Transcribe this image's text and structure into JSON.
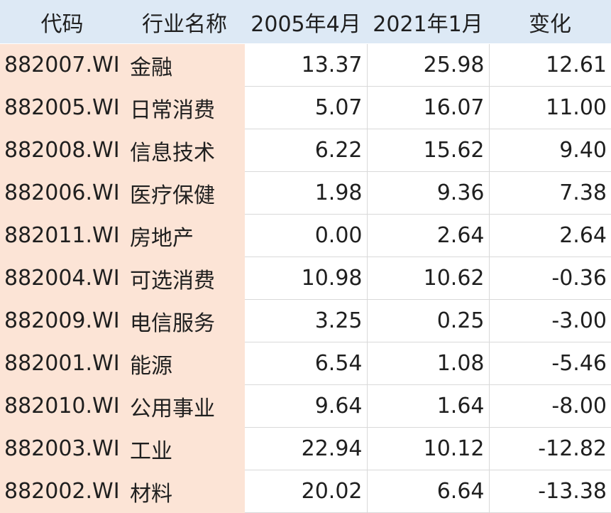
{
  "headers": {
    "code": "代码",
    "name": "行业名称",
    "v2005": "2005年4月",
    "v2021": "2021年1月",
    "change": "变化"
  },
  "rows": [
    {
      "code": "882007.WI",
      "name": "金融",
      "v2005": "13.37",
      "v2021": "25.98",
      "change": "12.61"
    },
    {
      "code": "882005.WI",
      "name": "日常消费",
      "v2005": "5.07",
      "v2021": "16.07",
      "change": "11.00"
    },
    {
      "code": "882008.WI",
      "name": "信息技术",
      "v2005": "6.22",
      "v2021": "15.62",
      "change": "9.40"
    },
    {
      "code": "882006.WI",
      "name": "医疗保健",
      "v2005": "1.98",
      "v2021": "9.36",
      "change": "7.38"
    },
    {
      "code": "882011.WI",
      "name": "房地产",
      "v2005": "0.00",
      "v2021": "2.64",
      "change": "2.64"
    },
    {
      "code": "882004.WI",
      "name": "可选消费",
      "v2005": "10.98",
      "v2021": "10.62",
      "change": "-0.36"
    },
    {
      "code": "882009.WI",
      "name": "电信服务",
      "v2005": "3.25",
      "v2021": "0.25",
      "change": "-3.00"
    },
    {
      "code": "882001.WI",
      "name": "能源",
      "v2005": "6.54",
      "v2021": "1.08",
      "change": "-5.46"
    },
    {
      "code": "882010.WI",
      "name": "公用事业",
      "v2005": "9.64",
      "v2021": "1.64",
      "change": "-8.00"
    },
    {
      "code": "882003.WI",
      "name": "工业",
      "v2005": "22.94",
      "v2021": "10.12",
      "change": "-12.82"
    },
    {
      "code": "882002.WI",
      "name": "材料",
      "v2005": "20.02",
      "v2021": "6.64",
      "change": "-13.38"
    }
  ],
  "colors": {
    "header_bg": "#dde9f5",
    "label_bg": "#fce4d6",
    "grid": "#d9d9d9"
  }
}
